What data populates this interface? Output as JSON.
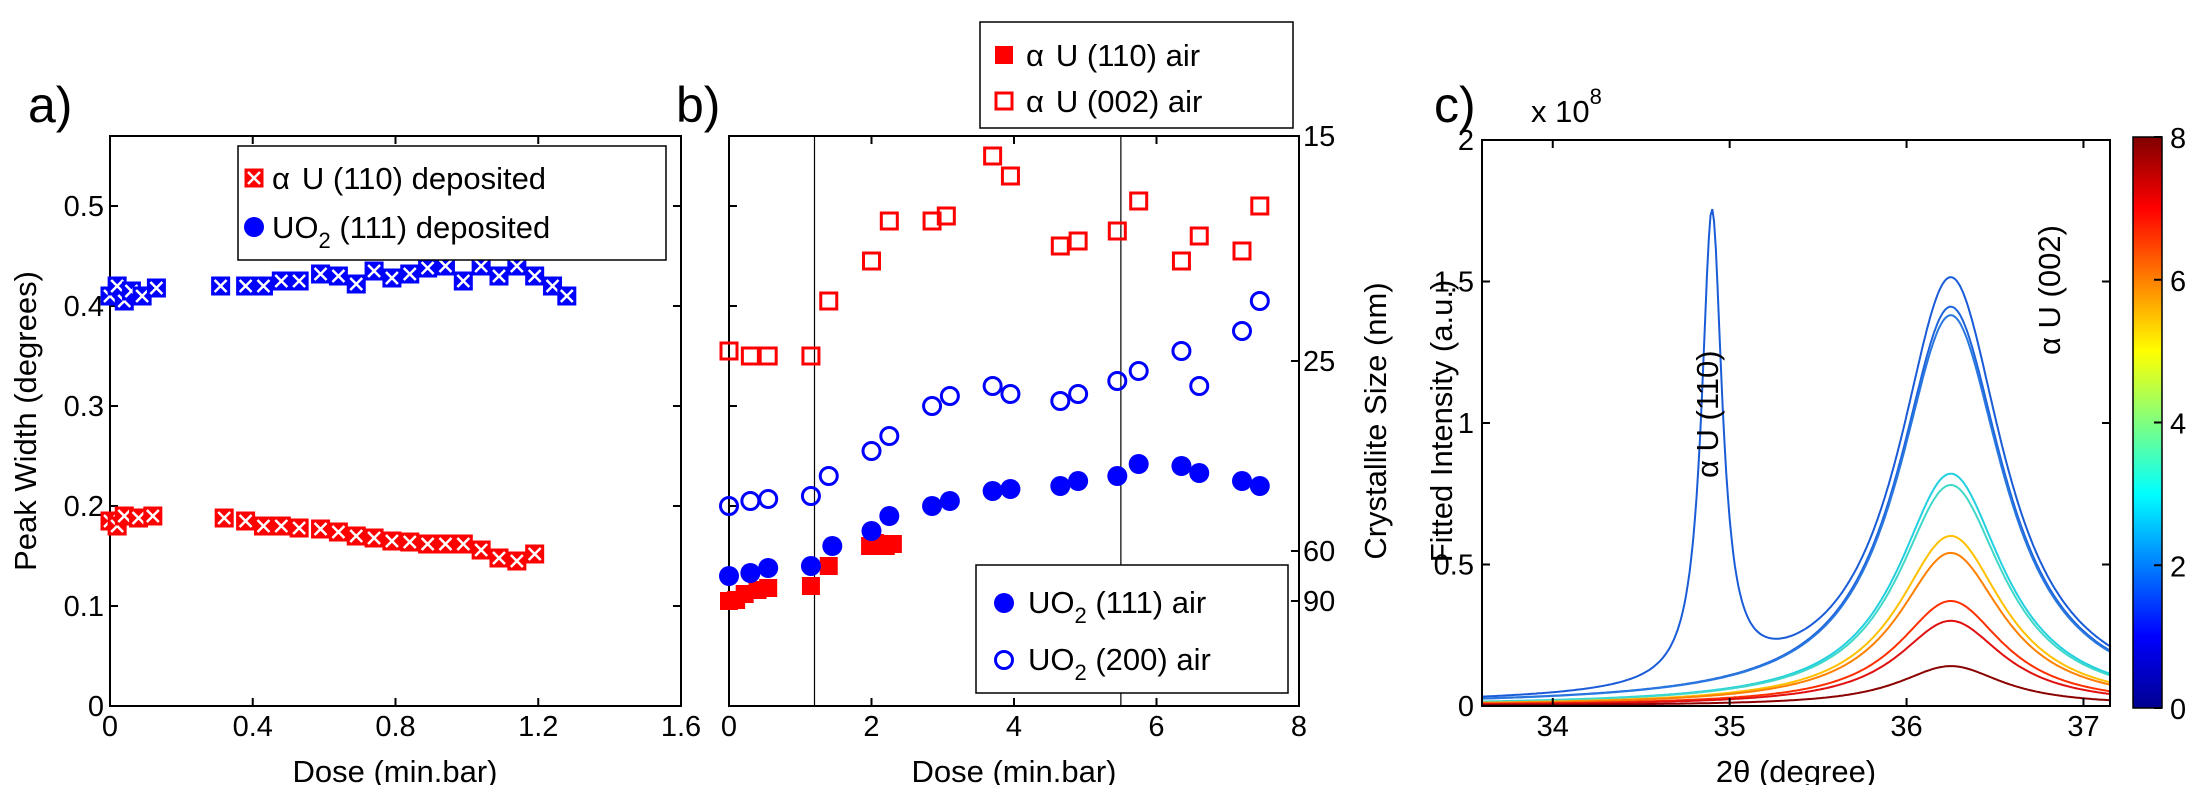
{
  "chart_data": [
    {
      "panel": "a)",
      "type": "scatter",
      "xlabel": "Dose (min.bar)",
      "ylabel": "Peak Width (degrees)",
      "xlim": [
        0,
        1.6
      ],
      "ylim": [
        0,
        0.57
      ],
      "xticks": [
        "0",
        "0.4",
        "0.8",
        "1.2",
        "1.6"
      ],
      "yticks": [
        "0",
        "0.1",
        "0.2",
        "0.3",
        "0.4",
        "0.5"
      ],
      "legend_position": "top-right",
      "series": [
        {
          "name": "α U (110) deposited",
          "legend_greek": "α",
          "legend_text": "U (110) deposited",
          "color": "#ff0000",
          "marker": "square-x",
          "x": [
            0.0,
            0.02,
            0.04,
            0.08,
            0.12,
            0.32,
            0.38,
            0.43,
            0.48,
            0.53,
            0.59,
            0.64,
            0.69,
            0.74,
            0.79,
            0.84,
            0.89,
            0.94,
            0.99,
            1.04,
            1.09,
            1.14,
            1.19
          ],
          "y": [
            0.185,
            0.18,
            0.19,
            0.188,
            0.19,
            0.188,
            0.185,
            0.18,
            0.18,
            0.178,
            0.177,
            0.174,
            0.17,
            0.168,
            0.165,
            0.164,
            0.162,
            0.162,
            0.162,
            0.156,
            0.148,
            0.145,
            0.152
          ]
        },
        {
          "name": "UO2 (111) deposited",
          "legend_text": "UO",
          "legend_sub": "2",
          "legend_text2": " (111) deposited",
          "color": "#0000ff",
          "marker": "square-x",
          "x": [
            0.0,
            0.02,
            0.04,
            0.06,
            0.09,
            0.13,
            0.31,
            0.38,
            0.43,
            0.48,
            0.53,
            0.59,
            0.64,
            0.69,
            0.74,
            0.79,
            0.84,
            0.89,
            0.94,
            0.99,
            1.04,
            1.09,
            1.14,
            1.19,
            1.24,
            1.28
          ],
          "y": [
            0.41,
            0.42,
            0.405,
            0.415,
            0.41,
            0.418,
            0.42,
            0.42,
            0.42,
            0.425,
            0.425,
            0.432,
            0.43,
            0.422,
            0.435,
            0.428,
            0.432,
            0.438,
            0.44,
            0.425,
            0.44,
            0.43,
            0.44,
            0.43,
            0.42,
            0.41
          ]
        }
      ]
    },
    {
      "panel": "b)",
      "type": "scatter",
      "xlabel": "Dose (min.bar)",
      "ylabel_right": "Crystallite Size (nm)",
      "xlim": [
        0,
        8
      ],
      "ylim": [
        0,
        0.57
      ],
      "xticks": [
        "0",
        "2",
        "4",
        "6",
        "8"
      ],
      "right_ticks": [
        {
          "label": "15",
          "at_width": 0.57
        },
        {
          "label": "25",
          "at_width": 0.345
        },
        {
          "label": "60",
          "at_width": 0.155
        },
        {
          "label": "90",
          "at_width": 0.105
        }
      ],
      "vlines": [
        1.2,
        5.5
      ],
      "legend_top_position": "above",
      "legend_bottom_position": "bottom-right",
      "series": [
        {
          "name": "α U (110) air",
          "legend_greek": "α",
          "legend_text": "U (110) air",
          "color": "#ff0000",
          "marker": "square-filled",
          "x": [
            0.0,
            0.1,
            0.22,
            0.4,
            0.55,
            1.15,
            1.4,
            1.98,
            2.05,
            2.2,
            2.3
          ],
          "y": [
            0.105,
            0.106,
            0.112,
            0.116,
            0.118,
            0.12,
            0.14,
            0.16,
            0.163,
            0.16,
            0.162
          ]
        },
        {
          "name": "α U (002) air",
          "legend_greek": "α",
          "legend_text": "U (002) air",
          "color": "#ff0000",
          "marker": "square-open",
          "x": [
            0.0,
            0.3,
            0.55,
            1.15,
            1.4,
            2.0,
            2.25,
            2.85,
            3.05,
            3.7,
            3.95,
            4.65,
            4.9,
            5.45,
            5.75,
            6.35,
            6.6,
            7.2,
            7.45
          ],
          "y": [
            0.355,
            0.35,
            0.35,
            0.35,
            0.405,
            0.445,
            0.485,
            0.485,
            0.49,
            0.55,
            0.53,
            0.46,
            0.465,
            0.475,
            0.505,
            0.445,
            0.47,
            0.455,
            0.5
          ]
        },
        {
          "name": "UO2 (111) air",
          "legend_text": "UO",
          "legend_sub": "2",
          "legend_text2": " (111) air",
          "color": "#0000ff",
          "marker": "circle-filled",
          "x": [
            0.0,
            0.3,
            0.55,
            1.15,
            1.45,
            2.0,
            2.25,
            2.85,
            3.1,
            3.7,
            3.95,
            4.65,
            4.9,
            5.45,
            5.75,
            6.35,
            6.6,
            7.2,
            7.45
          ],
          "y": [
            0.13,
            0.133,
            0.138,
            0.14,
            0.16,
            0.175,
            0.19,
            0.2,
            0.205,
            0.215,
            0.217,
            0.22,
            0.225,
            0.23,
            0.242,
            0.24,
            0.233,
            0.225,
            0.22
          ]
        },
        {
          "name": "UO2 (200) air",
          "legend_text": "UO",
          "legend_sub": "2",
          "legend_text2": " (200) air",
          "color": "#0000ff",
          "marker": "circle-open",
          "x": [
            0.0,
            0.3,
            0.55,
            1.15,
            1.4,
            2.0,
            2.25,
            2.85,
            3.1,
            3.7,
            3.95,
            4.65,
            4.9,
            5.45,
            5.75,
            6.35,
            6.6,
            7.2,
            7.45
          ],
          "y": [
            0.2,
            0.205,
            0.207,
            0.21,
            0.23,
            0.255,
            0.27,
            0.3,
            0.31,
            0.32,
            0.312,
            0.305,
            0.312,
            0.325,
            0.335,
            0.355,
            0.32,
            0.375,
            0.405
          ]
        }
      ]
    },
    {
      "panel": "c)",
      "type": "line",
      "xlabel_theta": "θ",
      "xlabel_prefix": "2",
      "xlabel_suffix": " (degree)",
      "ylabel": "Fitted Intensity (a.u.)",
      "xlim": [
        33.6,
        37.15
      ],
      "ylim": [
        0,
        2.0
      ],
      "xticks": [
        "34",
        "35",
        "36",
        "37"
      ],
      "yticks": [
        "0",
        "0.5",
        "1",
        "1.5",
        "2"
      ],
      "y_multiplier_base": "x 10",
      "y_multiplier_exp": "8",
      "annotations": [
        {
          "greek": "α",
          "text": " U (110)"
        },
        {
          "greek": "α",
          "text": " U (002)"
        }
      ],
      "colorbar": {
        "range": [
          0,
          8
        ],
        "ticks": [
          "0",
          "2",
          "4",
          "6",
          "8"
        ],
        "colormap": "jet"
      },
      "peak1_center": 34.9,
      "peak2_center": 36.25,
      "series": [
        {
          "name": "curve-1",
          "color": "#1a5cd8",
          "peak1_height": 1.86,
          "peak2_height": 1.51
        },
        {
          "name": "curve-2",
          "color": "#1e64dc",
          "peak1_height": 0.0,
          "peak2_height": 1.41
        },
        {
          "name": "curve-3",
          "color": "#2878e0",
          "peak1_height": 0.0,
          "peak2_height": 1.38
        },
        {
          "name": "curve-4",
          "color": "#22d0e0",
          "peak1_height": 0.0,
          "peak2_height": 0.82
        },
        {
          "name": "curve-5",
          "color": "#40d8c8",
          "peak1_height": 0.0,
          "peak2_height": 0.78
        },
        {
          "name": "curve-6",
          "color": "#ffc000",
          "peak1_height": 0.0,
          "peak2_height": 0.6
        },
        {
          "name": "curve-7",
          "color": "#ff8000",
          "peak1_height": 0.0,
          "peak2_height": 0.54
        },
        {
          "name": "curve-8",
          "color": "#ff3000",
          "peak1_height": 0.0,
          "peak2_height": 0.37
        },
        {
          "name": "curve-9",
          "color": "#e01010",
          "peak1_height": 0.0,
          "peak2_height": 0.3
        },
        {
          "name": "curve-10",
          "color": "#8b0000",
          "peak1_height": 0.0,
          "peak2_height": 0.14
        }
      ]
    }
  ]
}
